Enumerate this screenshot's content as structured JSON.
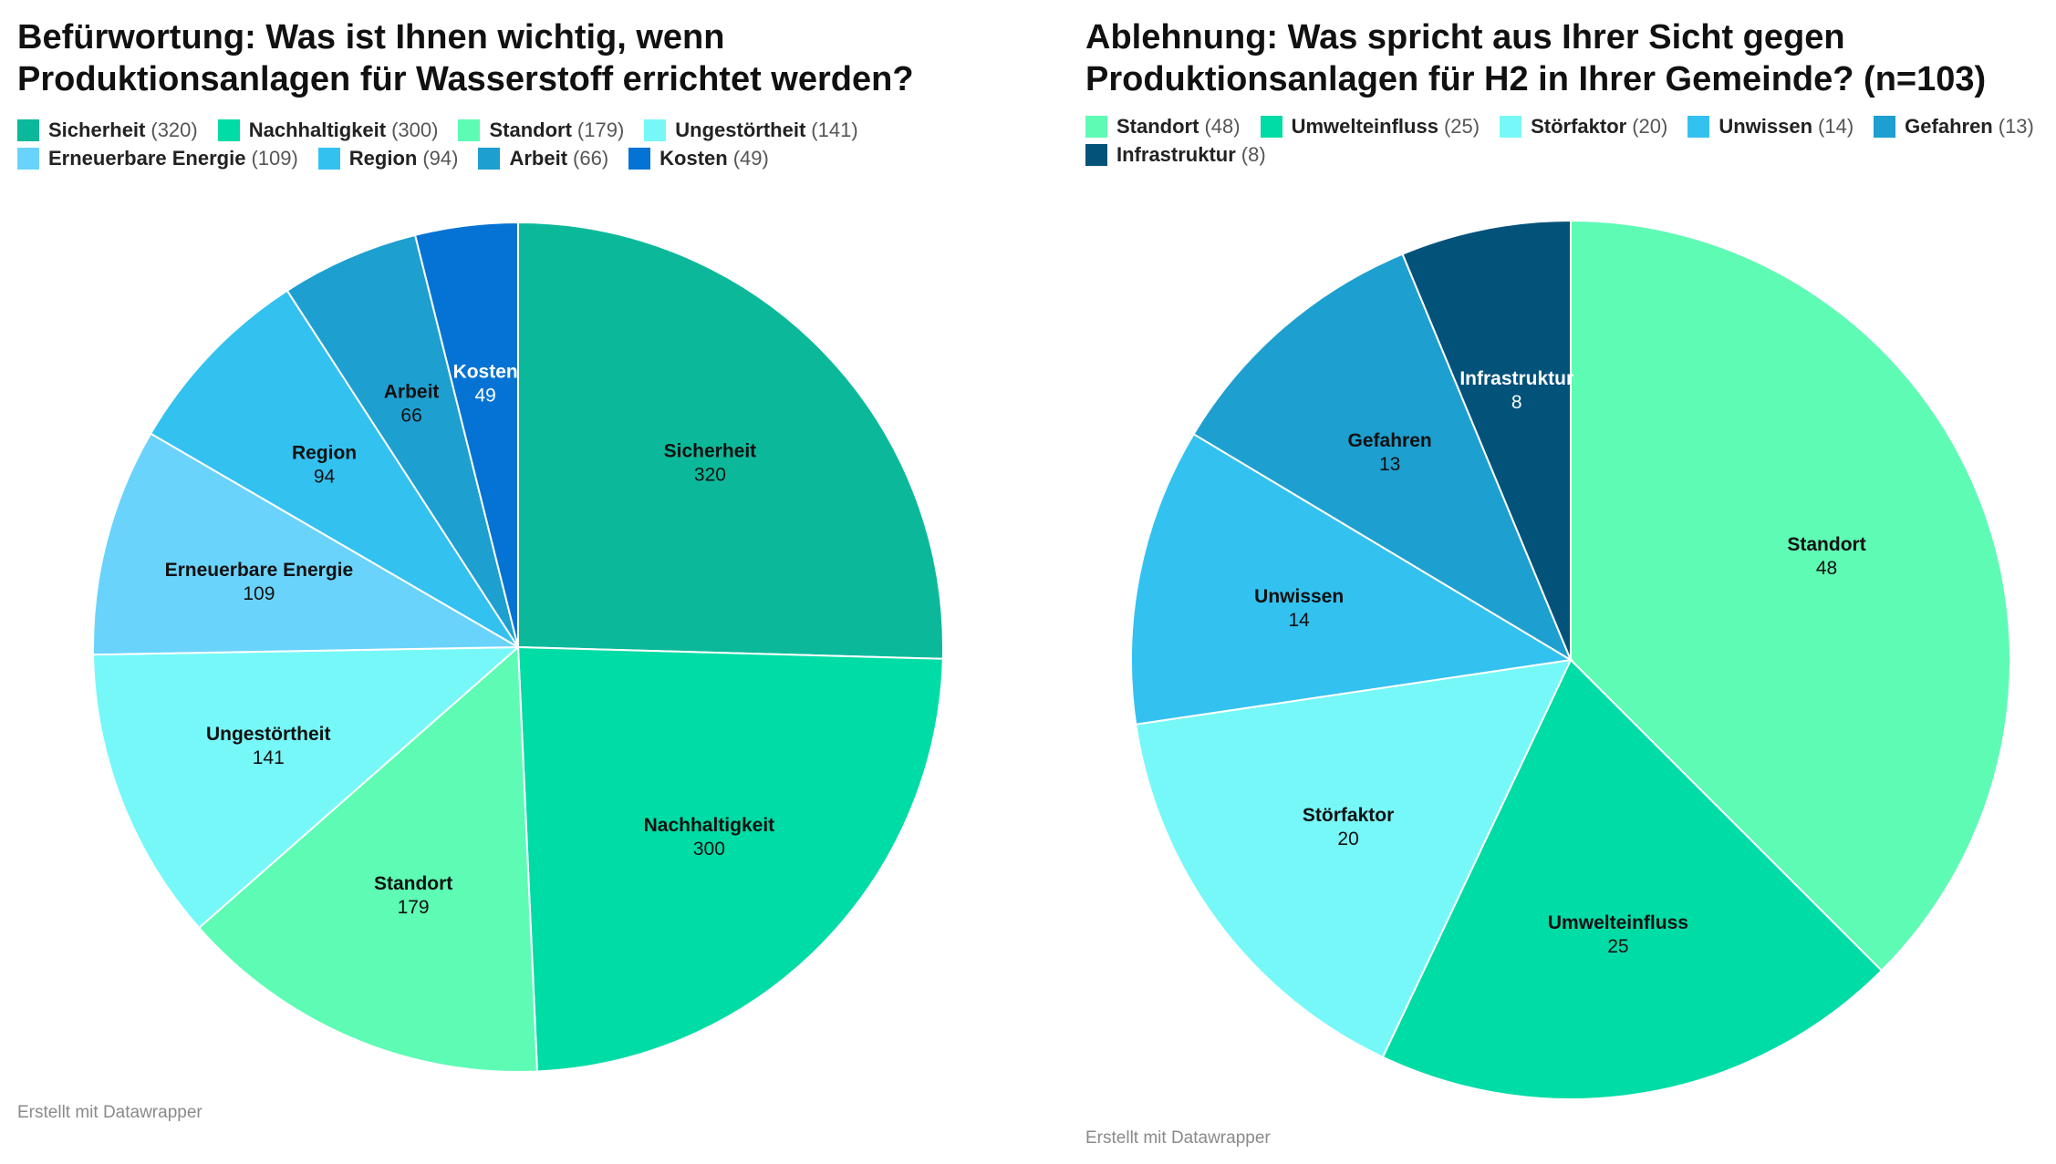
{
  "chart_data": [
    {
      "type": "pie",
      "title": "Befürwortung: Was ist Ihnen wichtig, wenn Produktionsanlagen für Wasserstoff errichtet werden?",
      "footer": "Erstellt mit Datawrapper",
      "legend_placement": "top",
      "categories": [
        "Sicherheit",
        "Nachhaltigkeit",
        "Standort",
        "Ungestörtheit",
        "Erneuerbare Energie",
        "Region",
        "Arbeit",
        "Kosten"
      ],
      "values": [
        320,
        300,
        179,
        141,
        109,
        94,
        66,
        49
      ],
      "colors": [
        "#0bb99a",
        "#00dca6",
        "#5efbb4",
        "#77f8f8",
        "#6ad3fb",
        "#33c1f0",
        "#1d9fd0",
        "#0573d3"
      ],
      "label_colors": [
        "#111111",
        "#111111",
        "#111111",
        "#111111",
        "#111111",
        "#111111",
        "#111111",
        "#ffffff"
      ]
    },
    {
      "type": "pie",
      "title": "Ablehnung: Was spricht aus Ihrer Sicht gegen Produktionsanlagen für H2 in Ihrer Gemeinde? (n=103)",
      "footer": "Erstellt mit Datawrapper",
      "legend_placement": "top",
      "categories": [
        "Standort",
        "Umwelteinfluss",
        "Störfaktor",
        "Unwissen",
        "Gefahren",
        "Infrastruktur"
      ],
      "values": [
        48,
        25,
        20,
        14,
        13,
        8
      ],
      "colors": [
        "#5efbb4",
        "#00dca6",
        "#77f8f8",
        "#33c1f0",
        "#1d9fd0",
        "#03527a"
      ],
      "label_colors": [
        "#111111",
        "#111111",
        "#111111",
        "#111111",
        "#111111",
        "#ffffff"
      ]
    }
  ]
}
